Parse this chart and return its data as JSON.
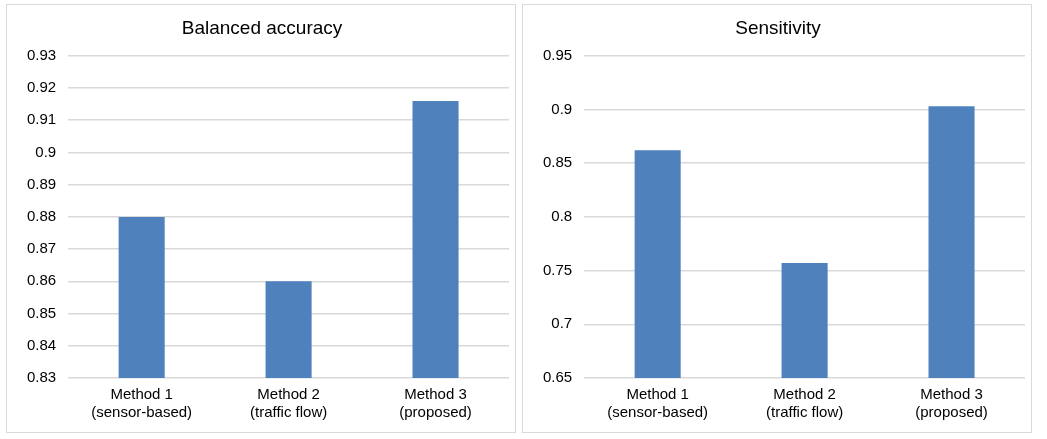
{
  "chart_data": [
    {
      "type": "bar",
      "title": "Balanced accuracy",
      "categories": [
        "Method 1\n(sensor-based)",
        "Method 2\n(traffic flow)",
        "Method 3\n(proposed)"
      ],
      "values": [
        0.88,
        0.86,
        0.916
      ],
      "color": "#4f81bd",
      "ylim": [
        0.83,
        0.93
      ],
      "yticks": [
        0.83,
        0.84,
        0.85,
        0.86,
        0.87,
        0.88,
        0.89,
        0.9,
        0.91,
        0.92,
        0.93
      ],
      "grid": "y"
    },
    {
      "type": "bar",
      "title": "Sensitivity",
      "categories": [
        "Method 1\n(sensor-based)",
        "Method 2\n(traffic flow)",
        "Method 3\n(proposed)"
      ],
      "values": [
        0.862,
        0.757,
        0.903
      ],
      "color": "#4f81bd",
      "ylim": [
        0.65,
        0.95
      ],
      "yticks": [
        0.65,
        0.7,
        0.75,
        0.8,
        0.85,
        0.9,
        0.95
      ],
      "grid": "y"
    }
  ]
}
